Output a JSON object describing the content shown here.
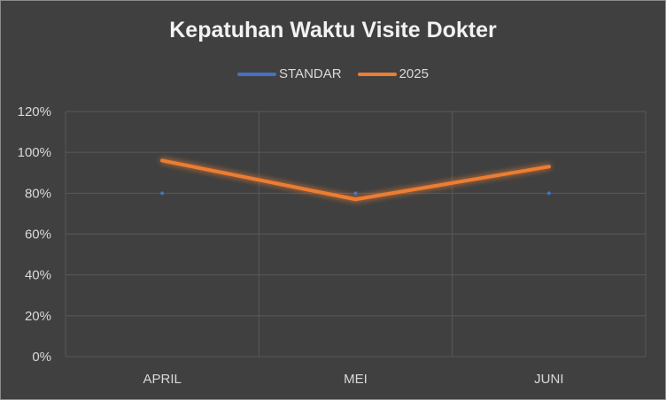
{
  "chart_data": {
    "type": "line",
    "title": "Kepatuhan Waktu Visite Dokter",
    "xlabel": "",
    "ylabel": "",
    "categories": [
      "APRIL",
      "MEI",
      "JUNI"
    ],
    "ylim": [
      0,
      1.2
    ],
    "y_ticks": [
      0,
      0.2,
      0.4,
      0.6,
      0.8,
      1.0,
      1.2
    ],
    "y_tick_labels": [
      "0%",
      "20%",
      "40%",
      "60%",
      "80%",
      "100%",
      "120%"
    ],
    "grid": true,
    "legend_position": "top",
    "series": [
      {
        "name": "STANDAR",
        "values": [
          0.8,
          0.8,
          0.8
        ],
        "color": "#4472c4"
      },
      {
        "name": "2025",
        "values": [
          0.96,
          0.77,
          0.93
        ],
        "color": "#ed7d31"
      }
    ]
  },
  "colors": {
    "background": "#404040",
    "grid": "#595959",
    "text": "#d9d9d9"
  }
}
